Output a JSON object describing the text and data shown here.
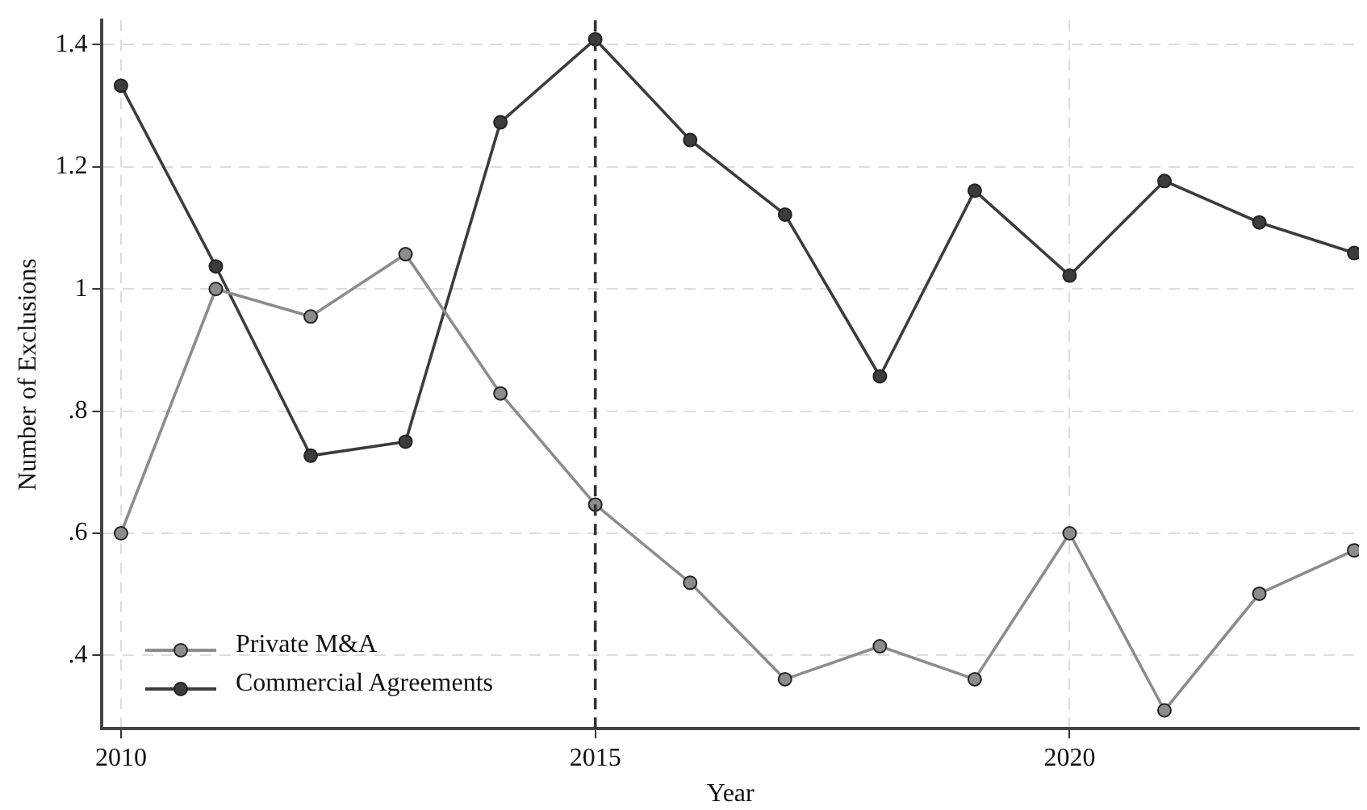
{
  "chart_data": {
    "type": "line",
    "xlabel": "Year",
    "ylabel": "Number of Exclusions",
    "x": [
      2010,
      2011,
      2012,
      2013,
      2014,
      2015,
      2016,
      2017,
      2018,
      2019,
      2020,
      2021,
      2022,
      2023
    ],
    "series": [
      {
        "name": "Private M&A",
        "color": "#8c8c8c",
        "values": [
          0.6,
          1.0,
          0.955,
          1.057,
          0.829,
          0.647,
          0.519,
          0.361,
          0.415,
          0.361,
          0.6,
          0.31,
          0.501,
          0.572
        ]
      },
      {
        "name": "Commercial Agreements",
        "color": "#3c3c3c",
        "values": [
          1.333,
          1.037,
          0.727,
          0.75,
          1.273,
          1.409,
          1.244,
          1.122,
          0.857,
          1.161,
          1.022,
          1.177,
          1.109,
          1.059
        ]
      }
    ],
    "xlim": [
      2009.8,
      2023.05
    ],
    "xticks": [
      2010,
      2015,
      2020
    ],
    "ylim": [
      0.28,
      1.44
    ],
    "yticks": [
      {
        "value": 0.4,
        "label": ".4"
      },
      {
        "value": 0.6,
        "label": ".6"
      },
      {
        "value": 0.8,
        "label": ".8"
      },
      {
        "value": 1,
        "label": "1"
      },
      {
        "value": 1.2,
        "label": "1.2"
      },
      {
        "value": 1.4,
        "label": "1.4"
      }
    ],
    "ref_lines": [
      {
        "axis": "x",
        "value": 2015,
        "color": "#333333",
        "line_style": "dashed"
      }
    ],
    "grid": true,
    "legend": "bottom left",
    "marker": "circle",
    "line_style": "solid"
  }
}
